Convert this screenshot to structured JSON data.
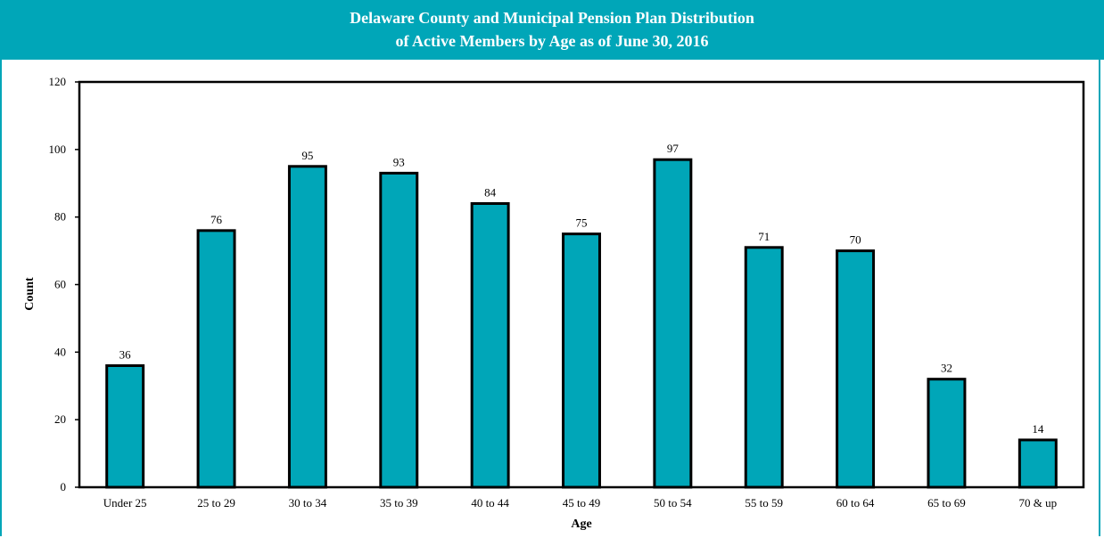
{
  "chart_data": {
    "type": "bar",
    "title": "Delaware County and Municipal Pension Plan Distribution",
    "subtitle": "of Active Members by Age as of June 30, 2016",
    "xlabel": "Age",
    "ylabel": "Count",
    "categories": [
      "Under 25",
      "25 to 29",
      "30 to 34",
      "35 to 39",
      "40 to 44",
      "45 to 49",
      "50 to 54",
      "55 to 59",
      "60 to 64",
      "65 to 69",
      "70 & up"
    ],
    "values": [
      36,
      76,
      95,
      93,
      84,
      75,
      97,
      71,
      70,
      32,
      14
    ],
    "ylim": [
      0,
      120
    ],
    "yticks": [
      0,
      20,
      40,
      60,
      80,
      100,
      120
    ],
    "grid": false,
    "legend": "none",
    "bar_color": "#00a6b8",
    "bar_outline": "#000000"
  }
}
